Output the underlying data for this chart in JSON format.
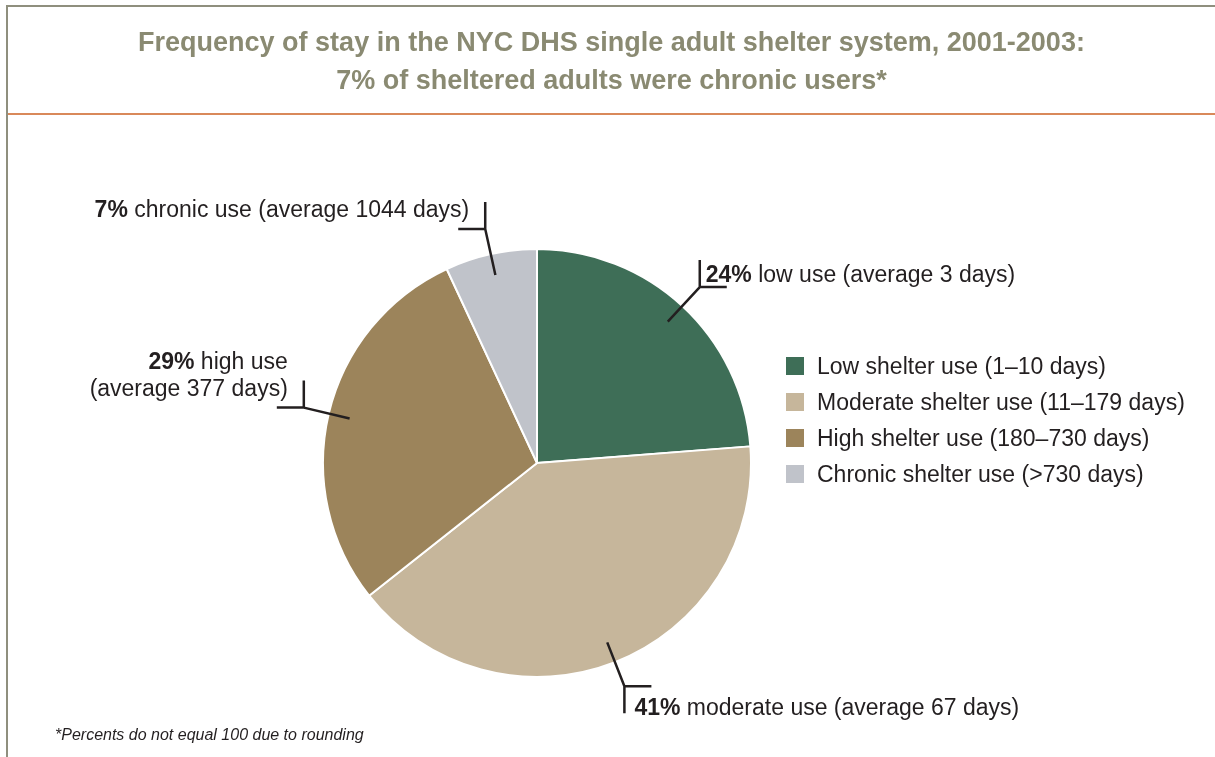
{
  "chart_data": {
    "type": "pie",
    "title": "Frequency of stay in the NYC DHS single adult shelter system, 2001-2003: 7% of sheltered adults were chronic users*",
    "categories": [
      "Low shelter use (1–10 days)",
      "Moderate shelter use (11–179 days)",
      "High shelter use (180–730 days)",
      "Chronic shelter use (>730 days)"
    ],
    "values": [
      24,
      41,
      29,
      7
    ],
    "colors": [
      "#3e6e57",
      "#c6b69b",
      "#9c845b",
      "#c0c3ca"
    ],
    "value_labels": [
      "24% low use (average 3 days)",
      "41% moderate use (average 67 days)",
      "29% high use (average 377 days)",
      "7% chronic use (average 1044 days)"
    ],
    "legend": "right",
    "annotations": [
      "*Percents do not equal 100 due to rounding"
    ]
  }
}
